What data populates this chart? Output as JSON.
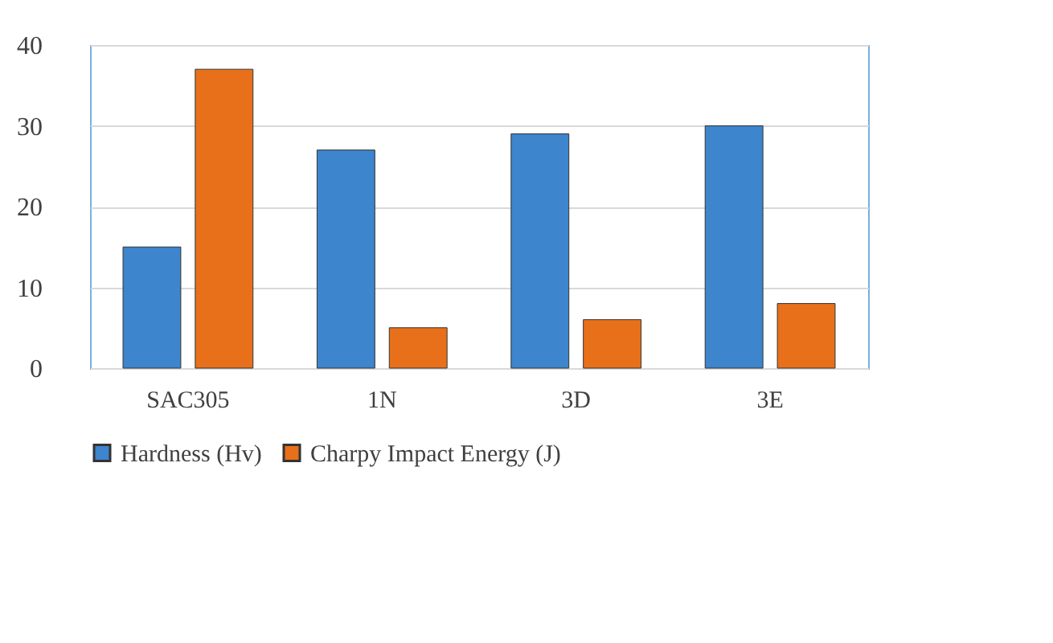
{
  "chart_data": {
    "type": "bar",
    "categories": [
      "SAC305",
      "1N",
      "3D",
      "3E"
    ],
    "series": [
      {
        "name": "Hardness (Hv)",
        "color": "#3d85cc",
        "values": [
          15,
          27,
          29,
          30
        ]
      },
      {
        "name": "Charpy Impact Energy (J)",
        "color": "#e8701a",
        "values": [
          37,
          5,
          6,
          8
        ]
      }
    ],
    "ylim": [
      0,
      40
    ],
    "yticks": [
      0,
      10,
      20,
      30,
      40
    ],
    "grid": "y",
    "legend": "bottom"
  }
}
